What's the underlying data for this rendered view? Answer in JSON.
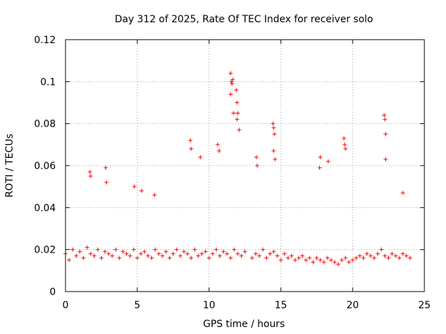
{
  "chart_data": {
    "type": "scatter",
    "title": "Day 312 of 2025, Rate Of TEC Index for receiver solo",
    "xlabel": "GPS time / hours",
    "ylabel": "ROTI / TECUs",
    "xlim": [
      0,
      25
    ],
    "ylim": [
      0,
      0.12
    ],
    "xticks": [
      0,
      5,
      10,
      15,
      20,
      25
    ],
    "xtick_labels": [
      "0",
      "5",
      "10",
      "15",
      "20",
      "25"
    ],
    "yticks": [
      0,
      0.02,
      0.04,
      0.06,
      0.08,
      0.1,
      0.12
    ],
    "ytick_labels": [
      "0",
      "0.02",
      "0.04",
      "0.06",
      "0.08",
      "0.1",
      "0.12"
    ],
    "grid": true,
    "marker": "plus",
    "color": "#ff0000",
    "series": [
      {
        "x": [
          0.0,
          0.25,
          0.5,
          0.75,
          1.0,
          1.25,
          1.5,
          1.75,
          2.0,
          2.25,
          2.5,
          2.75,
          3.0,
          3.25,
          3.5,
          3.75,
          4.0,
          4.25,
          4.5,
          4.75,
          5.0,
          5.25,
          5.5,
          5.75,
          6.0,
          6.25,
          6.5,
          6.75,
          7.0,
          7.25,
          7.5,
          7.75,
          8.0,
          8.25,
          8.5,
          8.75,
          9.0,
          9.25,
          9.5,
          9.75,
          10.0,
          10.25,
          10.5,
          10.75,
          11.0,
          11.25,
          11.5,
          11.75,
          12.0,
          12.25,
          12.5,
          13.0,
          13.25,
          13.5,
          13.75,
          14.0,
          14.25,
          14.5,
          14.75,
          15.0,
          15.25,
          15.5,
          15.75,
          16.0,
          16.25,
          16.5,
          16.75,
          17.0,
          17.25,
          17.5,
          17.75,
          18.0,
          18.25,
          18.5,
          18.75,
          19.0,
          19.25,
          19.5,
          19.75,
          20.0,
          20.25,
          20.5,
          20.75,
          21.0,
          21.25,
          21.5,
          21.75,
          22.0,
          22.25,
          22.5,
          22.75,
          23.0,
          23.25,
          23.5,
          23.75,
          24.0,
          1.7,
          1.75,
          2.8,
          2.85,
          4.8,
          5.3,
          6.2,
          8.7,
          8.75,
          9.4,
          10.6,
          10.7,
          11.5,
          11.55,
          11.6,
          11.65,
          11.7,
          11.5,
          11.9,
          11.95,
          12.0,
          11.95,
          12.1,
          13.3,
          13.35,
          14.45,
          14.5,
          14.55,
          14.5,
          14.6,
          17.7,
          17.75,
          18.3,
          19.4,
          19.45,
          19.5,
          22.2,
          22.25,
          22.3,
          22.3,
          23.5
        ],
        "y": [
          0.018,
          0.015,
          0.02,
          0.017,
          0.019,
          0.016,
          0.021,
          0.018,
          0.017,
          0.02,
          0.016,
          0.019,
          0.018,
          0.017,
          0.02,
          0.016,
          0.019,
          0.018,
          0.017,
          0.02,
          0.016,
          0.018,
          0.019,
          0.017,
          0.016,
          0.02,
          0.018,
          0.017,
          0.019,
          0.016,
          0.018,
          0.02,
          0.017,
          0.019,
          0.018,
          0.016,
          0.02,
          0.017,
          0.018,
          0.019,
          0.016,
          0.018,
          0.02,
          0.017,
          0.019,
          0.018,
          0.016,
          0.02,
          0.018,
          0.017,
          0.019,
          0.016,
          0.018,
          0.017,
          0.02,
          0.016,
          0.018,
          0.019,
          0.017,
          0.015,
          0.018,
          0.016,
          0.017,
          0.015,
          0.016,
          0.017,
          0.015,
          0.016,
          0.014,
          0.016,
          0.015,
          0.014,
          0.016,
          0.015,
          0.014,
          0.013,
          0.015,
          0.016,
          0.014,
          0.015,
          0.016,
          0.017,
          0.016,
          0.018,
          0.017,
          0.016,
          0.018,
          0.02,
          0.017,
          0.016,
          0.018,
          0.017,
          0.016,
          0.018,
          0.017,
          0.016,
          0.057,
          0.055,
          0.059,
          0.052,
          0.05,
          0.048,
          0.046,
          0.072,
          0.068,
          0.064,
          0.07,
          0.067,
          0.104,
          0.1,
          0.099,
          0.101,
          0.085,
          0.094,
          0.096,
          0.09,
          0.085,
          0.082,
          0.077,
          0.064,
          0.06,
          0.08,
          0.078,
          0.075,
          0.067,
          0.063,
          0.059,
          0.064,
          0.062,
          0.073,
          0.07,
          0.068,
          0.084,
          0.082,
          0.075,
          0.063,
          0.047
        ]
      }
    ]
  }
}
